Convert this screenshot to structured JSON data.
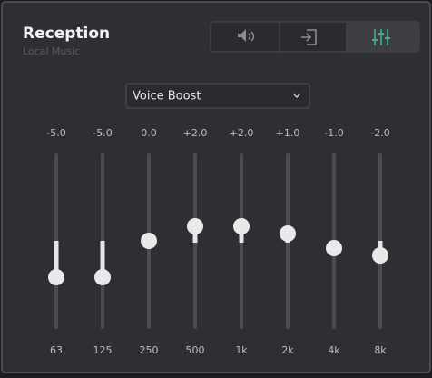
{
  "header": {
    "title": "Reception",
    "subtitle": "Local Music"
  },
  "preset": "Voice Boost",
  "bands": [
    {
      "label": "63",
      "gain": {
        "value": -5,
        "label": "-5.0"
      }
    },
    {
      "label": "125",
      "gain": {
        "value": -5,
        "label": "-5.0"
      }
    },
    {
      "label": "250",
      "gain": {
        "value": 0,
        "label": "0.0"
      }
    },
    {
      "label": "500",
      "gain": {
        "value": 2,
        "label": "+2.0"
      }
    },
    {
      "label": "1k",
      "gain": {
        "value": 2,
        "label": "+2.0"
      }
    },
    {
      "label": "2k",
      "gain": {
        "value": 1,
        "label": "+1.0"
      }
    },
    {
      "label": "4k",
      "gain": {
        "value": -1,
        "label": "-1.0"
      }
    },
    {
      "label": "8k",
      "gain": {
        "value": -2,
        "label": "-2.0"
      }
    }
  ]
}
